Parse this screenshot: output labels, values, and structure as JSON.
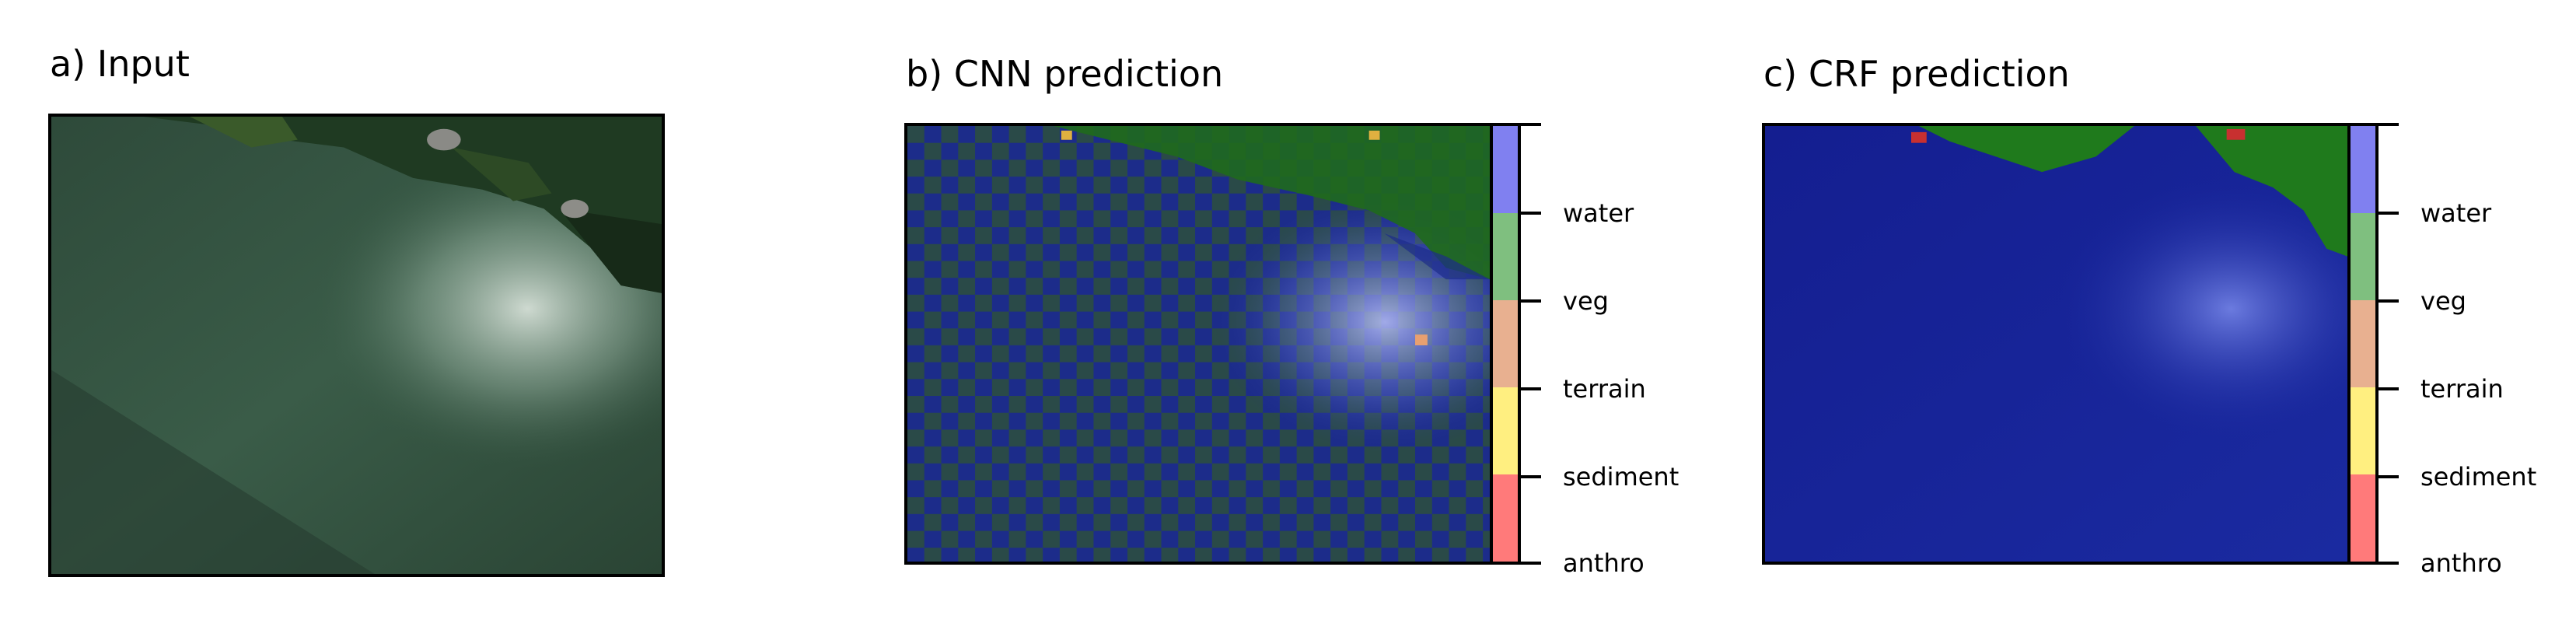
{
  "panels": {
    "a": {
      "title": "a) Input"
    },
    "b": {
      "title": "b) CNN prediction"
    },
    "c": {
      "title": "c) CRF prediction"
    }
  },
  "legend": {
    "classes": [
      "water",
      "veg",
      "terrain",
      "sediment",
      "anthro"
    ],
    "colors": [
      "#8080f0",
      "#7fbf7f",
      "#e8b090",
      "#ffef80",
      "#ff7a7a"
    ]
  }
}
